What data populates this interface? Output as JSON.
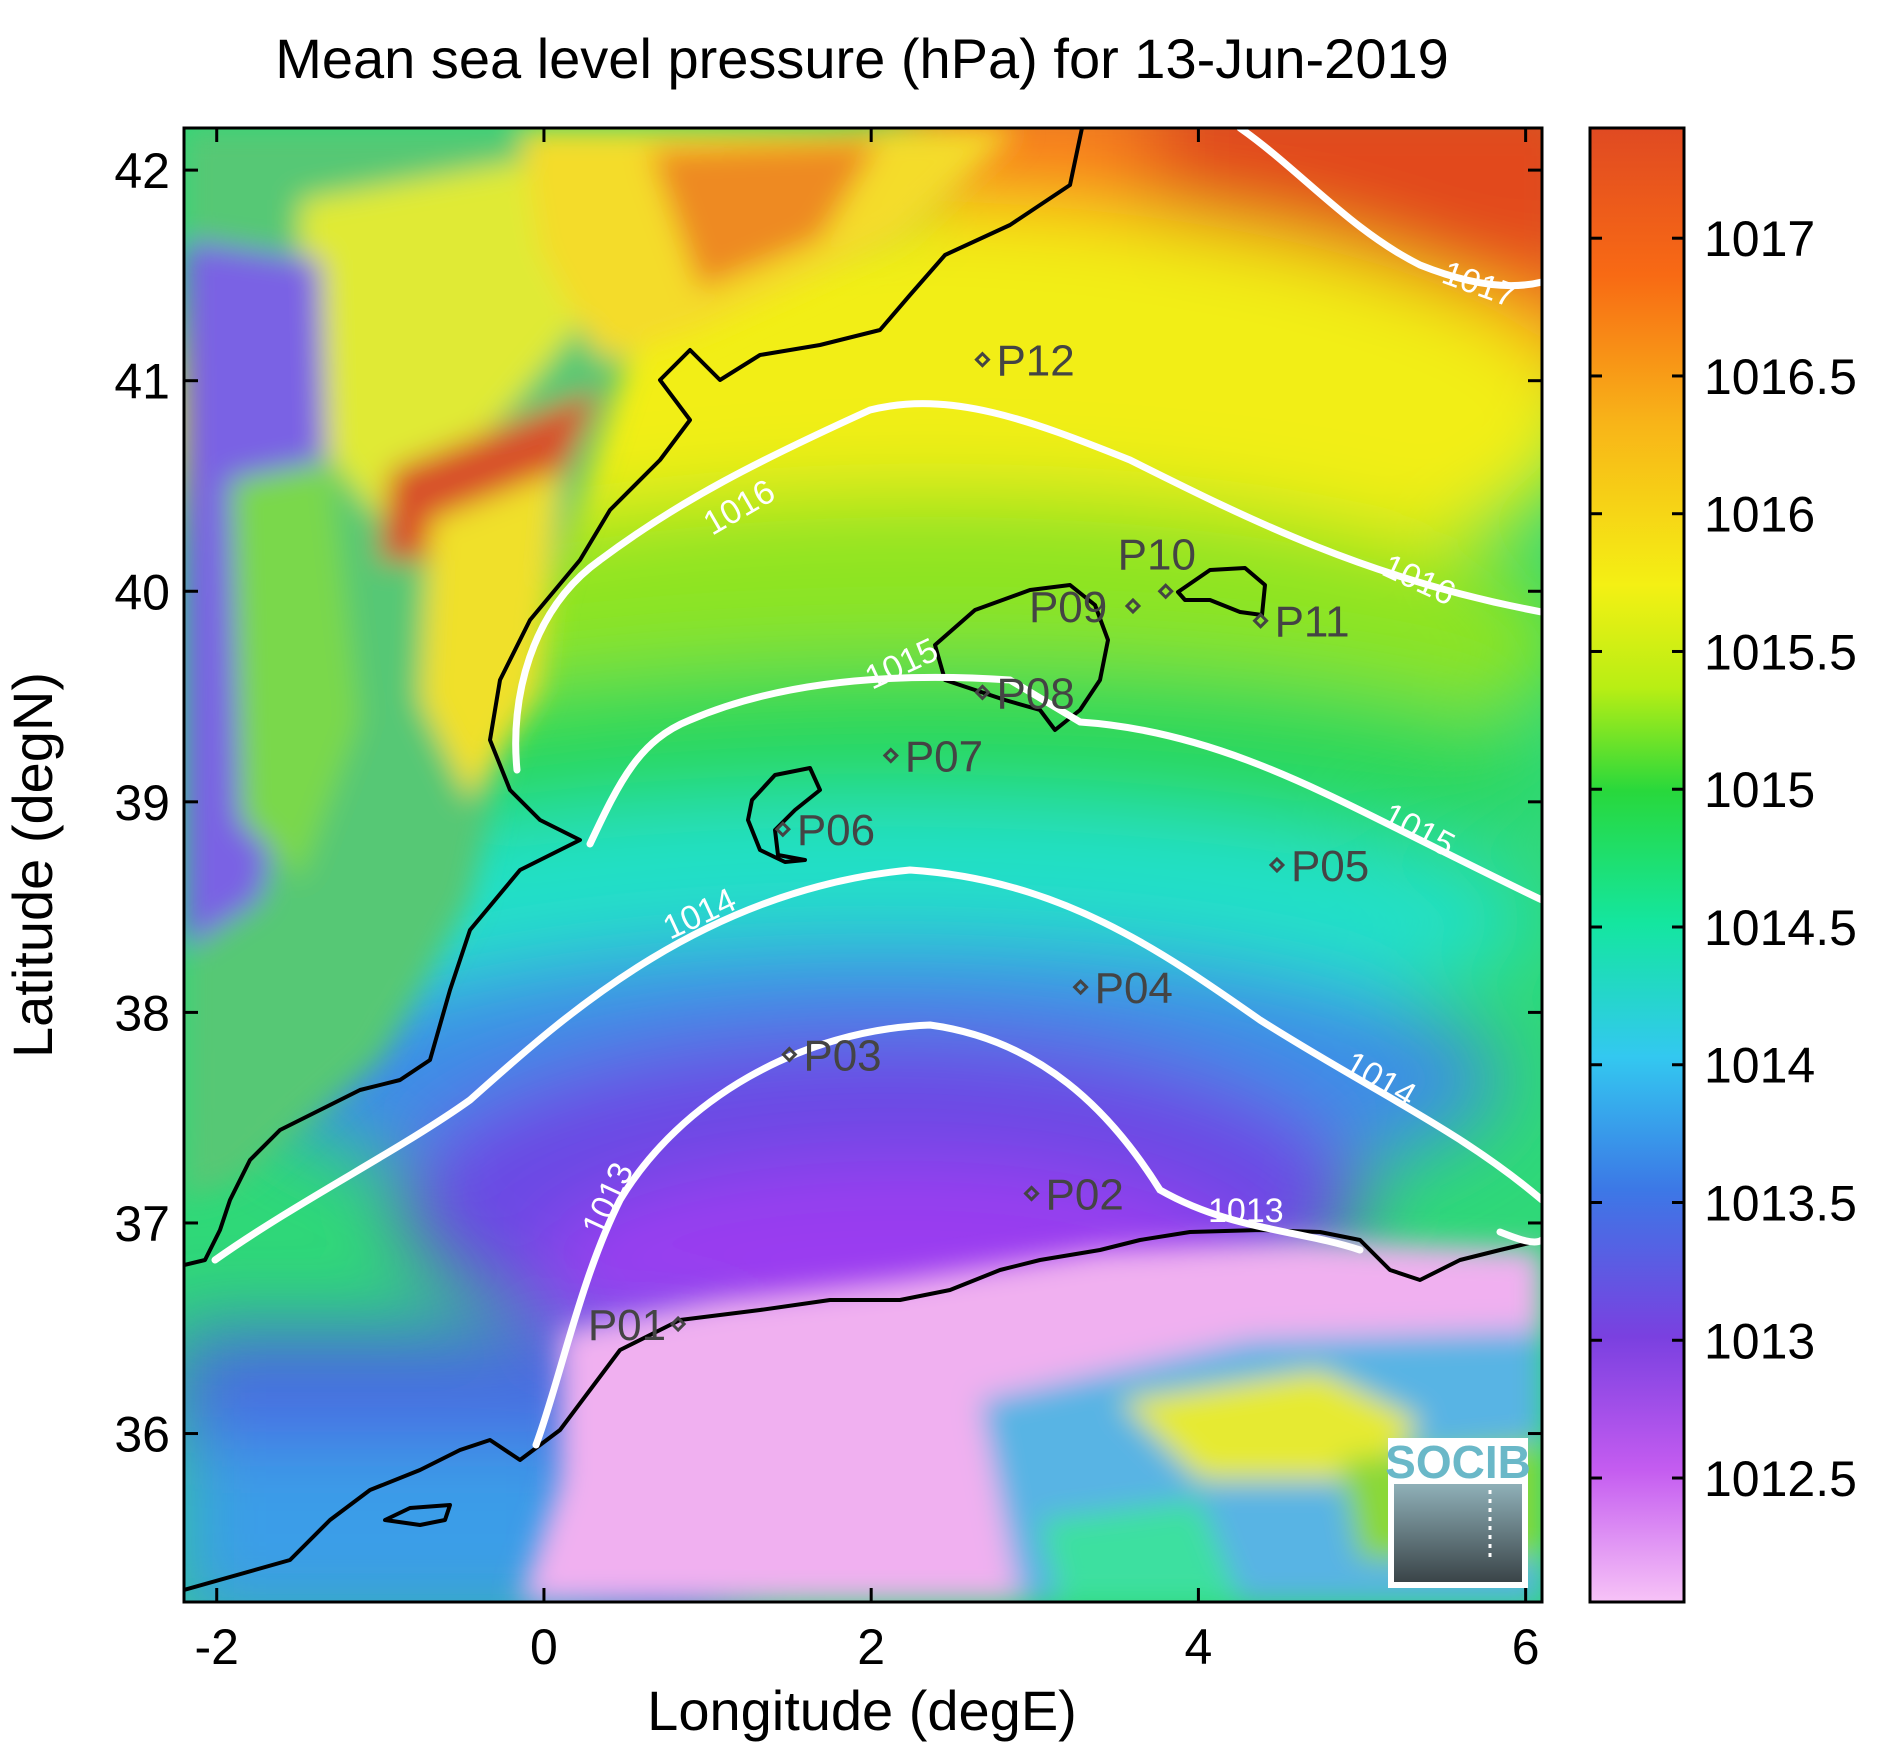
{
  "title": "Mean sea level pressure (hPa) for 13-Jun-2019",
  "map": {
    "xlabel": "Longitude (degE)",
    "ylabel": "Latitude (degN)",
    "lon_range": [
      -2.2,
      6.1
    ],
    "lat_range": [
      35.2,
      42.2
    ],
    "x_ticks": [
      -2,
      0,
      2,
      4,
      6
    ],
    "y_ticks": [
      36,
      37,
      38,
      39,
      40,
      41,
      42
    ],
    "x_tick_labels": [
      "-2",
      "0",
      "2",
      "4",
      "6"
    ],
    "y_tick_labels": [
      "36",
      "37",
      "38",
      "39",
      "40",
      "41",
      "42"
    ]
  },
  "colorbar": {
    "min": 1012.05,
    "max": 1017.4,
    "ticks": [
      1012.5,
      1013,
      1013.5,
      1014,
      1014.5,
      1015,
      1015.5,
      1016,
      1016.5,
      1017
    ],
    "tick_labels": [
      "1012.5",
      "1013",
      "1013.5",
      "1014",
      "1014.5",
      "1015",
      "1015.5",
      "1016",
      "1016.5",
      "1017"
    ],
    "colors": [
      "#f7c3f7",
      "#c45cf0",
      "#7a40e0",
      "#3c78e6",
      "#33c8f0",
      "#14e6a0",
      "#28d83c",
      "#b8ee14",
      "#f4f014",
      "#f8b418",
      "#f86a14",
      "#e04a22"
    ]
  },
  "stations": [
    {
      "id": "P01",
      "lon": 0.82,
      "lat": 36.52
    },
    {
      "id": "P02",
      "lon": 2.98,
      "lat": 37.14
    },
    {
      "id": "P03",
      "lon": 1.5,
      "lat": 37.8
    },
    {
      "id": "P04",
      "lon": 3.28,
      "lat": 38.12
    },
    {
      "id": "P05",
      "lon": 4.48,
      "lat": 38.7
    },
    {
      "id": "P06",
      "lon": 1.46,
      "lat": 38.87
    },
    {
      "id": "P07",
      "lon": 2.12,
      "lat": 39.22
    },
    {
      "id": "P08",
      "lon": 2.68,
      "lat": 39.52
    },
    {
      "id": "P09",
      "lon": 3.6,
      "lat": 39.93
    },
    {
      "id": "P10",
      "lon": 3.8,
      "lat": 40.0
    },
    {
      "id": "P11",
      "lon": 4.38,
      "lat": 39.86
    },
    {
      "id": "P12",
      "lon": 2.68,
      "lat": 41.1
    }
  ],
  "contour_labels": [
    "1013",
    "1013",
    "1014",
    "1014",
    "1015",
    "1015",
    "1016",
    "1016",
    "1017"
  ],
  "logo": {
    "text": "SOCIB"
  }
}
